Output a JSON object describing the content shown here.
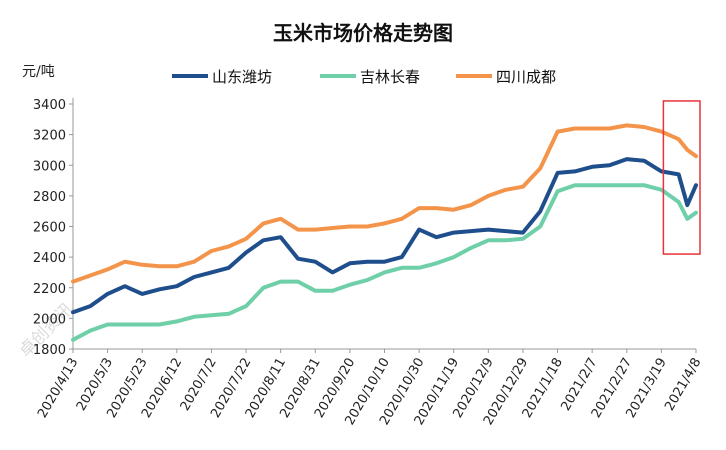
{
  "chart_data": {
    "type": "line",
    "title": "玉米市场价格走势图",
    "ylabel": "元/吨",
    "xlabel": "",
    "ylim": [
      1800,
      3400
    ],
    "yticks": [
      1800,
      2000,
      2200,
      2400,
      2600,
      2800,
      3000,
      3200,
      3400
    ],
    "grid": false,
    "legend": "top",
    "x_tick_labels": [
      "2020/4/13",
      "2020/5/3",
      "2020/5/23",
      "2020/6/12",
      "2020/7/2",
      "2020/7/22",
      "2020/8/11",
      "2020/8/31",
      "2020/9/20",
      "2020/10/10",
      "2020/10/30",
      "2020/11/19",
      "2020/12/9",
      "2020/12/29",
      "2021/1/18",
      "2021/2/7",
      "2021/2/27",
      "2021/3/19",
      "2021/4/8"
    ],
    "x": [
      "2020/4/13",
      "2020/4/23",
      "2020/5/3",
      "2020/5/13",
      "2020/5/23",
      "2020/6/2",
      "2020/6/12",
      "2020/6/22",
      "2020/7/2",
      "2020/7/12",
      "2020/7/22",
      "2020/8/1",
      "2020/8/11",
      "2020/8/21",
      "2020/8/31",
      "2020/9/10",
      "2020/9/20",
      "2020/9/30",
      "2020/10/10",
      "2020/10/20",
      "2020/10/30",
      "2020/11/9",
      "2020/11/19",
      "2020/11/29",
      "2020/12/9",
      "2020/12/19",
      "2020/12/29",
      "2021/1/8",
      "2021/1/18",
      "2021/1/28",
      "2021/2/7",
      "2021/2/17",
      "2021/2/27",
      "2021/3/9",
      "2021/3/19",
      "2021/3/29",
      "2021/4/3",
      "2021/4/8"
    ],
    "series": [
      {
        "name": "山东潍坊",
        "color": "#1f4e8c",
        "values": [
          2040,
          2080,
          2160,
          2210,
          2160,
          2190,
          2210,
          2270,
          2300,
          2330,
          2430,
          2510,
          2530,
          2390,
          2370,
          2300,
          2360,
          2370,
          2370,
          2400,
          2580,
          2530,
          2560,
          2570,
          2580,
          2570,
          2560,
          2700,
          2950,
          2960,
          2990,
          3000,
          3040,
          3030,
          2960,
          2940,
          2740,
          2870
        ]
      },
      {
        "name": "吉林长春",
        "color": "#6fcfa8",
        "values": [
          1860,
          1920,
          1960,
          1960,
          1960,
          1960,
          1980,
          2010,
          2020,
          2030,
          2080,
          2200,
          2240,
          2240,
          2180,
          2180,
          2220,
          2250,
          2300,
          2330,
          2330,
          2360,
          2400,
          2460,
          2510,
          2510,
          2520,
          2600,
          2830,
          2870,
          2870,
          2870,
          2870,
          2870,
          2840,
          2760,
          2650,
          2690
        ]
      },
      {
        "name": "四川成都",
        "color": "#f4944a",
        "values": [
          2240,
          2280,
          2320,
          2370,
          2350,
          2340,
          2340,
          2370,
          2440,
          2470,
          2520,
          2620,
          2650,
          2580,
          2580,
          2590,
          2600,
          2600,
          2620,
          2650,
          2720,
          2720,
          2710,
          2740,
          2800,
          2840,
          2860,
          2980,
          3220,
          3240,
          3240,
          3240,
          3260,
          3250,
          3220,
          3170,
          3100,
          3060
        ]
      }
    ],
    "highlight": {
      "from": "2021/3/19",
      "to": "2021/4/8",
      "ymin": 2420,
      "ymax": 3420,
      "color": "#e8333a"
    }
  },
  "watermark": "卓创资讯"
}
